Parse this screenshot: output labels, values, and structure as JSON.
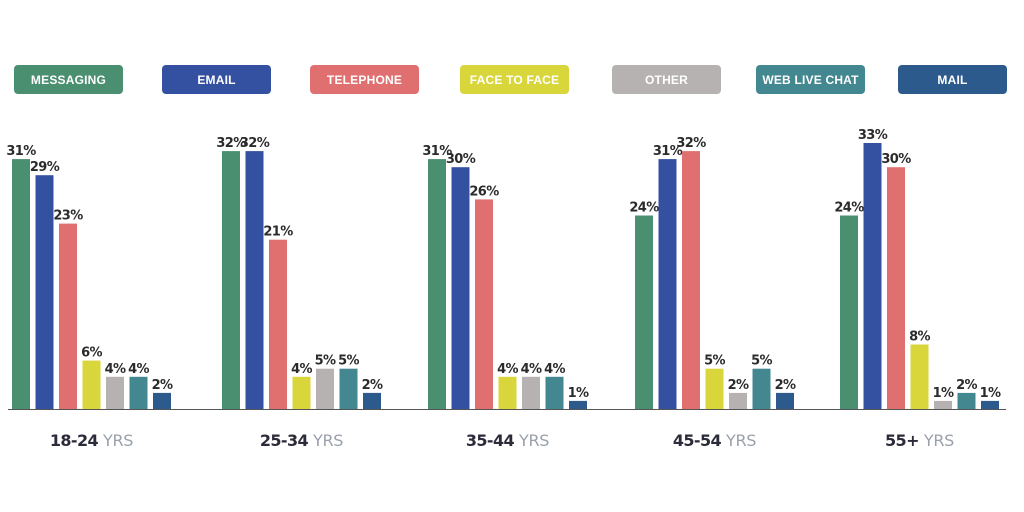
{
  "chart_data": {
    "type": "bar",
    "categories": [
      "18-24",
      "25-34",
      "35-44",
      "45-54",
      "55+"
    ],
    "category_unit": "YRS",
    "legend_position": "top",
    "grid": false,
    "ylim": [
      0,
      33
    ],
    "series": [
      {
        "name": "MESSAGING",
        "color": "#4a8f6f",
        "values": [
          31,
          32,
          31,
          24,
          24
        ]
      },
      {
        "name": "EMAIL",
        "color": "#3450a0",
        "values": [
          29,
          32,
          30,
          31,
          33
        ]
      },
      {
        "name": "TELEPHONE",
        "color": "#e07070",
        "values": [
          23,
          21,
          26,
          32,
          30
        ]
      },
      {
        "name": "FACE TO FACE",
        "color": "#d8d63a",
        "values": [
          6,
          4,
          4,
          5,
          8
        ]
      },
      {
        "name": "OTHER",
        "color": "#b6b2b2",
        "values": [
          4,
          5,
          4,
          2,
          1
        ]
      },
      {
        "name": "WEB LIVE CHAT",
        "color": "#438790",
        "values": [
          4,
          5,
          4,
          5,
          2
        ]
      },
      {
        "name": "MAIL",
        "color": "#2c5a8c",
        "values": [
          2,
          2,
          1,
          2,
          1
        ]
      }
    ]
  }
}
